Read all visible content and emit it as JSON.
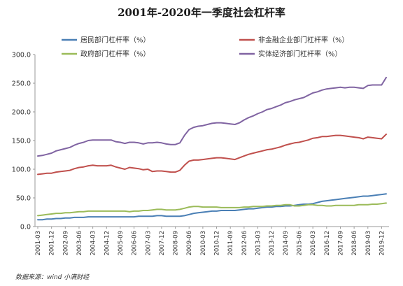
{
  "chart_data": {
    "type": "line",
    "title": "2001年-2020年一季度社会杠杆率",
    "source": "数据来源：wind 小满财经",
    "ylim": [
      0,
      300
    ],
    "yticks": [
      "0.0",
      "50.0",
      "100.0",
      "150.0",
      "200.0",
      "250.0",
      "300.0"
    ],
    "grid": false,
    "legend_position": "top",
    "x": [
      "2001-03",
      "2001-06",
      "2001-09",
      "2001-12",
      "2002-03",
      "2002-06",
      "2002-09",
      "2002-12",
      "2003-03",
      "2003-06",
      "2003-09",
      "2003-12",
      "2004-03",
      "2004-06",
      "2004-09",
      "2004-12",
      "2005-03",
      "2005-06",
      "2005-09",
      "2005-12",
      "2006-03",
      "2006-06",
      "2006-09",
      "2006-12",
      "2007-03",
      "2007-06",
      "2007-09",
      "2007-12",
      "2008-03",
      "2008-06",
      "2008-09",
      "2008-12",
      "2009-03",
      "2009-06",
      "2009-09",
      "2009-12",
      "2010-03",
      "2010-06",
      "2010-09",
      "2010-12",
      "2011-03",
      "2011-06",
      "2011-09",
      "2011-12",
      "2012-03",
      "2012-06",
      "2012-09",
      "2012-12",
      "2013-03",
      "2013-06",
      "2013-09",
      "2013-12",
      "2014-03",
      "2014-06",
      "2014-09",
      "2014-12",
      "2015-03",
      "2015-06",
      "2015-09",
      "2015-12",
      "2016-03",
      "2016-06",
      "2016-09",
      "2016-12",
      "2017-03",
      "2017-06",
      "2017-09",
      "2017-12",
      "2018-03",
      "2018-06",
      "2018-09",
      "2018-12",
      "2019-03",
      "2019-06",
      "2019-09",
      "2019-12",
      "2020-03"
    ],
    "xtick_labels": [
      "2001-03",
      "2001-12",
      "2002-09",
      "2003-06",
      "2004-03",
      "2004-12",
      "2005-09",
      "2006-06",
      "2007-03",
      "2007-12",
      "2008-09",
      "2009-06",
      "2010-03",
      "2010-12",
      "2011-09",
      "2012-06",
      "2013-03",
      "2013-12",
      "2014-09",
      "2015-06",
      "2016-03",
      "2016-12",
      "2017-09",
      "2018-06",
      "2019-03",
      "2019-12"
    ],
    "series": [
      {
        "name": "居民部门杠杆率（%）",
        "color": "#4a7fb5",
        "values": [
          12,
          12,
          13,
          13,
          14,
          14,
          15,
          15,
          16,
          16,
          16,
          17,
          17,
          17,
          17,
          17,
          17,
          17,
          17,
          17,
          17,
          17,
          18,
          18,
          18,
          18,
          19,
          19,
          18,
          18,
          18,
          18,
          19,
          21,
          23,
          24,
          25,
          26,
          27,
          27,
          28,
          28,
          28,
          28,
          29,
          30,
          31,
          31,
          32,
          33,
          34,
          34,
          35,
          35,
          36,
          36,
          37,
          38,
          39,
          39,
          40,
          42,
          44,
          45,
          46,
          47,
          48,
          49,
          50,
          51,
          52,
          53,
          53,
          54,
          55,
          56,
          57
        ]
      },
      {
        "name": "非金融企业部门杠杆率（%）",
        "color": "#c0504d",
        "values": [
          91,
          92,
          93,
          93,
          95,
          96,
          97,
          98,
          101,
          103,
          104,
          106,
          107,
          106,
          106,
          106,
          107,
          104,
          102,
          100,
          103,
          102,
          101,
          99,
          100,
          96,
          97,
          97,
          96,
          95,
          95,
          98,
          107,
          114,
          116,
          116,
          117,
          118,
          119,
          120,
          120,
          119,
          118,
          117,
          120,
          123,
          126,
          128,
          130,
          132,
          134,
          135,
          137,
          139,
          142,
          144,
          146,
          147,
          149,
          151,
          154,
          155,
          157,
          157,
          158,
          159,
          159,
          158,
          157,
          156,
          155,
          153,
          156,
          155,
          154,
          153,
          161
        ]
      },
      {
        "name": "政府部门杠杆率（%）",
        "color": "#9bbb59",
        "values": [
          19,
          20,
          21,
          22,
          23,
          23,
          24,
          24,
          25,
          26,
          26,
          27,
          27,
          27,
          27,
          27,
          27,
          27,
          27,
          27,
          26,
          27,
          27,
          28,
          28,
          29,
          30,
          30,
          29,
          29,
          29,
          30,
          32,
          34,
          35,
          35,
          34,
          34,
          34,
          34,
          33,
          33,
          33,
          33,
          33,
          34,
          34,
          35,
          35,
          35,
          36,
          36,
          37,
          37,
          38,
          38,
          36,
          36,
          37,
          38,
          38,
          37,
          37,
          36,
          36,
          37,
          37,
          37,
          37,
          37,
          38,
          38,
          38,
          39,
          39,
          40,
          41
        ]
      },
      {
        "name": "实体经济部门杠杆率（%）",
        "color": "#8064a2",
        "values": [
          123,
          124,
          126,
          128,
          132,
          134,
          136,
          138,
          142,
          145,
          147,
          150,
          151,
          151,
          151,
          151,
          151,
          148,
          147,
          145,
          147,
          147,
          146,
          144,
          146,
          146,
          147,
          146,
          144,
          143,
          143,
          146,
          159,
          169,
          173,
          175,
          176,
          178,
          180,
          181,
          181,
          180,
          179,
          178,
          181,
          186,
          190,
          193,
          197,
          200,
          204,
          206,
          209,
          212,
          216,
          218,
          221,
          223,
          225,
          229,
          233,
          235,
          238,
          240,
          241,
          242,
          243,
          242,
          243,
          243,
          242,
          241,
          246,
          247,
          247,
          247,
          260
        ]
      }
    ]
  }
}
